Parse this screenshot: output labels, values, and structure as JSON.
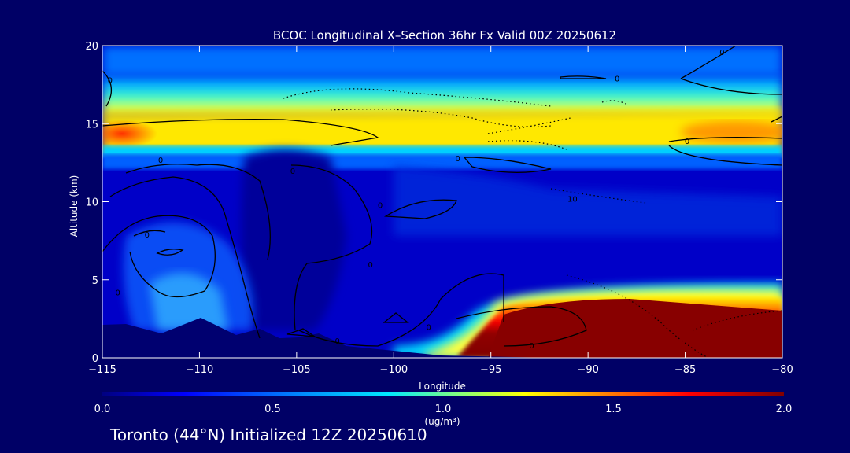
{
  "footer": "Toronto (44°N) Initialized 12Z 20250610",
  "chart_data": {
    "type": "heatmap",
    "title": "BCOC Longitudinal X–Section 36hr  Fx Valid 00Z 20250612",
    "xlabel": "Longitude",
    "ylabel": "Altitude (km)",
    "xlim": [
      -115,
      -80
    ],
    "ylim": [
      0,
      20
    ],
    "x_ticks": [
      -115,
      -110,
      -105,
      -100,
      -95,
      -90,
      -85,
      -80
    ],
    "x_tick_labels": [
      "−115",
      "−110",
      "−105",
      "−100",
      "−95",
      "−90",
      "−85",
      "−80"
    ],
    "y_ticks": [
      0,
      5,
      10,
      15,
      20
    ],
    "colorbar": {
      "label": "(ug/m³)",
      "range": [
        0.0,
        2.0
      ],
      "ticks": [
        "0.0",
        "0.5",
        "1.0",
        "1.5",
        "2.0"
      ],
      "colors": [
        "#000080",
        "#0000ff",
        "#00a0ff",
        "#00ffff",
        "#80ff80",
        "#ffff00",
        "#ff8000",
        "#ff0000",
        "#800000"
      ]
    },
    "contour_labels": [
      "0",
      "0",
      "0",
      "0",
      "0",
      "0",
      "0",
      "0",
      "0",
      "0",
      "0",
      "0",
      "0",
      "10",
      "0"
    ],
    "contour_label_positions": [
      [
        -114.6,
        17.8
      ],
      [
        -112.0,
        12.7
      ],
      [
        -112.7,
        7.9
      ],
      [
        -105.2,
        12.0
      ],
      [
        -101.2,
        6.0
      ],
      [
        -100.7,
        9.8
      ],
      [
        -96.7,
        12.8
      ],
      [
        -102.9,
        1.1
      ],
      [
        -92.9,
        0.8
      ],
      [
        -84.9,
        13.9
      ],
      [
        -88.5,
        17.9
      ],
      [
        -83.1,
        19.6
      ],
      [
        -114.2,
        4.2
      ],
      [
        -90.8,
        10.2
      ],
      [
        -98.2,
        2.0
      ]
    ],
    "series": [
      {
        "x": [
          -115,
          -112.5,
          -110,
          -107.5,
          -105,
          -102.5,
          -100,
          -97.5,
          -95,
          -92.5,
          -90,
          -87.5,
          -85,
          -82.5,
          -80
        ]
      },
      {
        "surface_topography_km": [
          2.2,
          2.0,
          2.6,
          2.0,
          1.5,
          1.1,
          0.9,
          0.6,
          0.3,
          0.2,
          0.2,
          0.15,
          0.15,
          0.1,
          0.1
        ]
      }
    ],
    "grid": false
  }
}
